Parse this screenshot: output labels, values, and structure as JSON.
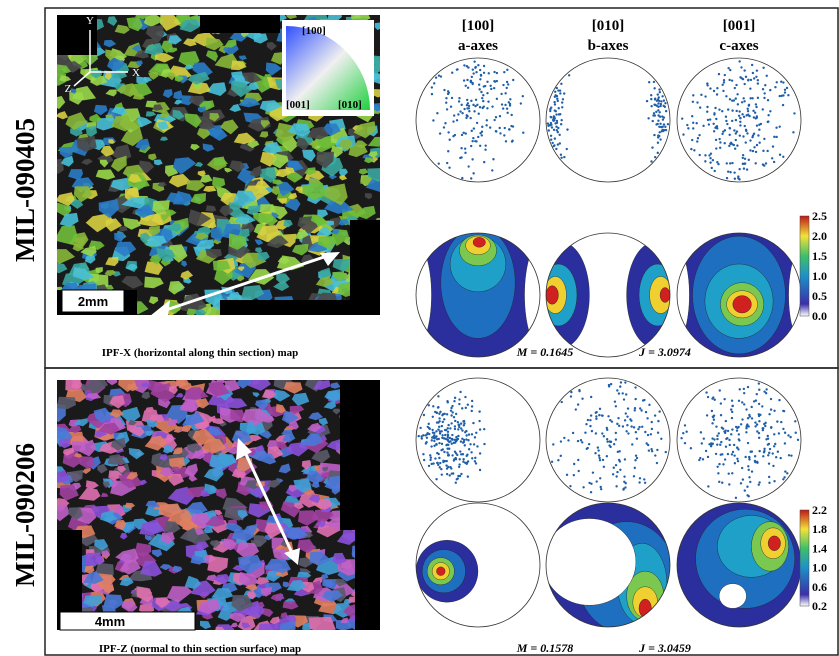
{
  "panels": [
    {
      "sample": "MIL-090405",
      "map": {
        "axis_labels": [
          "Y",
          "X",
          "Z"
        ],
        "ipf_key": [
          "[100]",
          "[001]",
          "[010]"
        ],
        "scale_bar": "2mm",
        "caption": "IPF-X (horizontal along thin section) map"
      },
      "pole_figures": [
        {
          "direction": "[100]",
          "axes": "a-axes"
        },
        {
          "direction": "[010]",
          "axes": "b-axes"
        },
        {
          "direction": "[001]",
          "axes": "c-axes"
        }
      ],
      "stats": [
        "M = 0.1645",
        "J = 3.0974"
      ],
      "colorbar": [
        "2.5",
        "2.0",
        "1.5",
        "1.0",
        "0.5",
        "0.0"
      ]
    },
    {
      "sample": "MIL-090206",
      "map": {
        "scale_bar": "4mm",
        "caption": "IPF-Z (normal to thin section surface) map"
      },
      "stats": [
        "M = 0.1578",
        "J = 3.0459"
      ],
      "colorbar": [
        "2.2",
        "1.8",
        "1.4",
        "1.0",
        "0.6",
        "0.2"
      ]
    }
  ]
}
